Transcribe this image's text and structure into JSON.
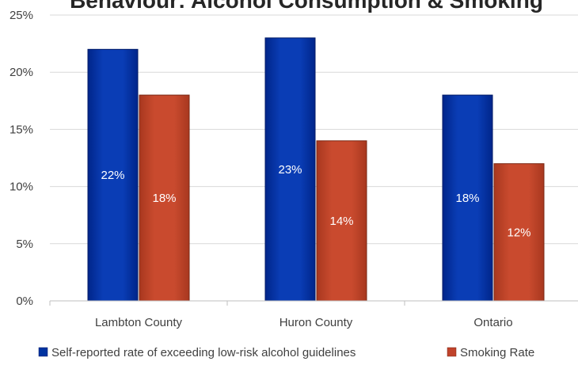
{
  "chart_data": {
    "type": "bar",
    "title": "Behaviour: Alcohol Consumption & Smoking",
    "categories": [
      "Lambton County",
      "Huron County",
      "Ontario"
    ],
    "series": [
      {
        "name": "Self-reported rate of exceeding low-risk alcohol guidelines",
        "values": [
          22,
          23,
          18
        ],
        "labels": [
          "22%",
          "23%",
          "18%"
        ],
        "color": "#0033a0"
      },
      {
        "name": "Smoking Rate",
        "values": [
          18,
          14,
          12
        ],
        "labels": [
          "18%",
          "14%",
          "12%"
        ],
        "color": "#c0432b"
      }
    ],
    "ylim": [
      0,
      25
    ],
    "yticks": [
      0,
      5,
      10,
      15,
      20,
      25
    ],
    "ytick_labels": [
      "0%",
      "5%",
      "10%",
      "15%",
      "20%",
      "25%"
    ],
    "grid": true,
    "legend_position": "bottom",
    "xlabel": "",
    "ylabel": ""
  }
}
